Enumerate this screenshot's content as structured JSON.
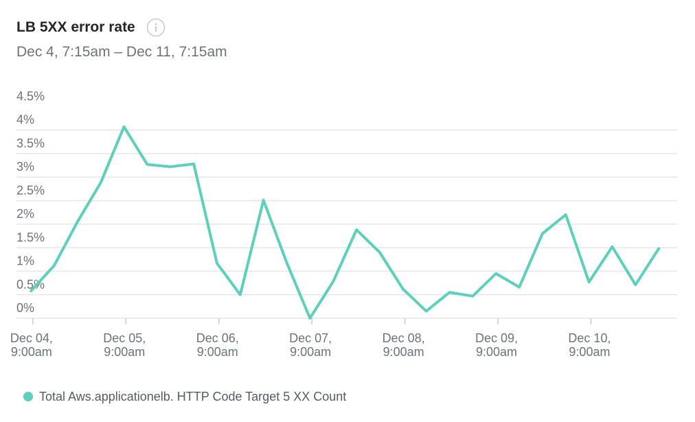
{
  "widget": {
    "title": "LB 5XX error rate",
    "info_icon": "info-icon",
    "subtitle": "Dec 4, 7:15am – Dec 11, 7:15am"
  },
  "colors": {
    "series": "#5dd0bb",
    "grid": "#e4e6e9",
    "axis_text": "#6c727a",
    "title": "#22262a"
  },
  "chart_data": {
    "type": "line",
    "grid": true,
    "legend_position": "bottom-left",
    "ylim": [
      0,
      4.5
    ],
    "y_ticks": [
      {
        "value": 0,
        "label": "0%"
      },
      {
        "value": 0.5,
        "label": "0.5%"
      },
      {
        "value": 1,
        "label": "1%"
      },
      {
        "value": 1.5,
        "label": "1.5%"
      },
      {
        "value": 2,
        "label": "2%"
      },
      {
        "value": 2.5,
        "label": "2.5%"
      },
      {
        "value": 3,
        "label": "3%"
      },
      {
        "value": 3.5,
        "label": "3.5%"
      },
      {
        "value": 4,
        "label": "4%"
      },
      {
        "value": 4.5,
        "label": "4.5%"
      }
    ],
    "xlim": [
      "2024-12-04T07:15",
      "2024-12-11T07:15"
    ],
    "x_ticks": [
      {
        "x": "2024-12-04T09:00",
        "line1": "Dec 04,",
        "line2": "9:00am"
      },
      {
        "x": "2024-12-05T09:00",
        "line1": "Dec 05,",
        "line2": "9:00am"
      },
      {
        "x": "2024-12-06T09:00",
        "line1": "Dec 06,",
        "line2": "9:00am"
      },
      {
        "x": "2024-12-07T09:00",
        "line1": "Dec 07,",
        "line2": "9:00am"
      },
      {
        "x": "2024-12-08T09:00",
        "line1": "Dec 08,",
        "line2": "9:00am"
      },
      {
        "x": "2024-12-09T09:00",
        "line1": "Dec 09,",
        "line2": "9:00am"
      },
      {
        "x": "2024-12-10T09:00",
        "line1": "Dec 10,",
        "line2": "9:00am"
      }
    ],
    "series": [
      {
        "name": "Total Aws.applicationelb. HTTP Code Target 5 XX Count",
        "points": [
          {
            "x": "2024-12-04T08:30",
            "y": 0.58
          },
          {
            "x": "2024-12-04T14:30",
            "y": 1.12
          },
          {
            "x": "2024-12-04T20:30",
            "y": 2.05
          },
          {
            "x": "2024-12-05T02:30",
            "y": 2.88
          },
          {
            "x": "2024-12-05T08:30",
            "y": 4.07
          },
          {
            "x": "2024-12-05T14:30",
            "y": 3.27
          },
          {
            "x": "2024-12-05T20:30",
            "y": 3.22
          },
          {
            "x": "2024-12-06T02:30",
            "y": 3.28
          },
          {
            "x": "2024-12-06T08:30",
            "y": 1.17
          },
          {
            "x": "2024-12-06T14:30",
            "y": 0.5
          },
          {
            "x": "2024-12-06T20:30",
            "y": 2.51
          },
          {
            "x": "2024-12-07T02:30",
            "y": 1.18
          },
          {
            "x": "2024-12-07T08:30",
            "y": 0.0
          },
          {
            "x": "2024-12-07T14:30",
            "y": 0.78
          },
          {
            "x": "2024-12-07T20:30",
            "y": 1.88
          },
          {
            "x": "2024-12-08T02:30",
            "y": 1.4
          },
          {
            "x": "2024-12-08T08:30",
            "y": 0.62
          },
          {
            "x": "2024-12-08T14:30",
            "y": 0.15
          },
          {
            "x": "2024-12-08T20:30",
            "y": 0.55
          },
          {
            "x": "2024-12-09T02:30",
            "y": 0.47
          },
          {
            "x": "2024-12-09T08:30",
            "y": 0.95
          },
          {
            "x": "2024-12-09T14:30",
            "y": 0.66
          },
          {
            "x": "2024-12-09T20:30",
            "y": 1.8
          },
          {
            "x": "2024-12-10T02:30",
            "y": 2.2
          },
          {
            "x": "2024-12-10T08:30",
            "y": 0.77
          },
          {
            "x": "2024-12-10T14:30",
            "y": 1.52
          },
          {
            "x": "2024-12-10T20:30",
            "y": 0.71
          },
          {
            "x": "2024-12-11T02:30",
            "y": 1.48
          }
        ]
      }
    ]
  }
}
